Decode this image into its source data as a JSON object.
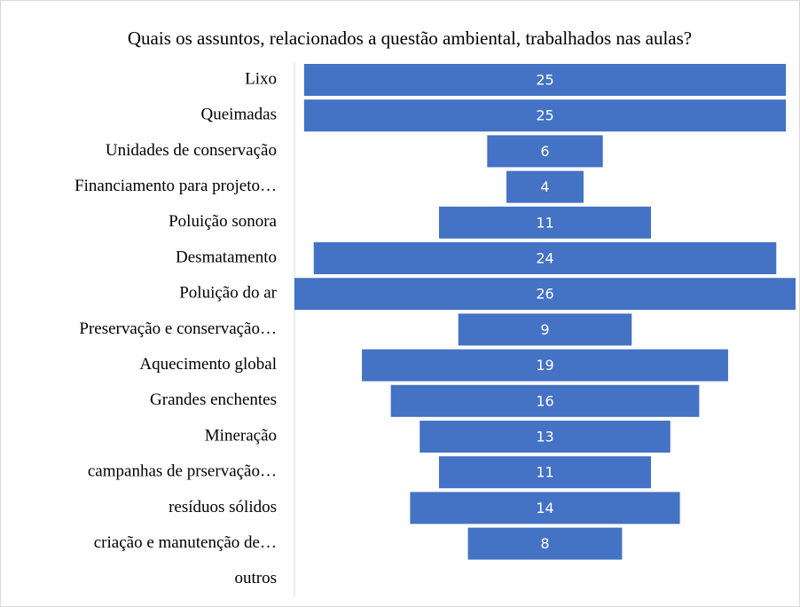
{
  "chart_data": {
    "type": "bar",
    "orientation": "horizontal",
    "centered": true,
    "title": "Quais os assuntos, relacionados a questão ambiental, trabalhados nas aulas?",
    "categories": [
      "Lixo",
      "Queimadas",
      "Unidades de conservação",
      "Financiamento para projeto…",
      "Poluição sonora",
      "Desmatamento",
      "Poluição do ar",
      "Preservação e conservação…",
      "Aquecimento global",
      "Grandes enchentes",
      "Mineração",
      "campanhas de prservação…",
      "resíduos sólidos",
      "criação e manutenção de…",
      "outros"
    ],
    "values": [
      25,
      25,
      6,
      4,
      11,
      24,
      26,
      9,
      19,
      16,
      13,
      11,
      14,
      8,
      null
    ],
    "color": "#4472c4"
  }
}
